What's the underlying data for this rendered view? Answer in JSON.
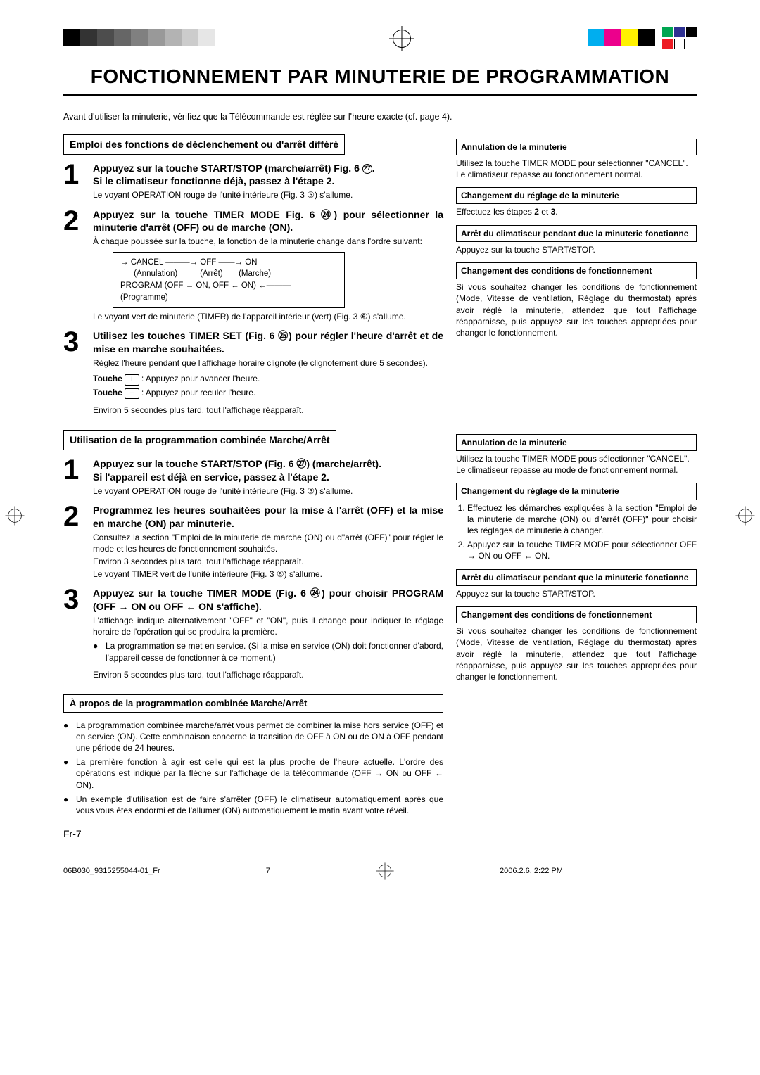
{
  "reg_colors_left": [
    "#000000",
    "#333333",
    "#4d4d4d",
    "#666666",
    "#808080",
    "#999999",
    "#b3b3b3",
    "#cccccc",
    "#e6e6e6"
  ],
  "reg_colors_right_lg": [
    "#00aeef",
    "#ec008c",
    "#fff200",
    "#000000"
  ],
  "reg_colors_right_sm": [
    "#00a651",
    "#ed1c24",
    "#2e3192",
    "#ffffff",
    "#000000"
  ],
  "title": "FONCTIONNEMENT PAR MINUTERIE DE PROGRAMMATION",
  "intro": "Avant d'utiliser la minuterie, vérifiez que la Télécommande est réglée sur l'heure exacte (cf. page 4).",
  "sectionA": {
    "header": "Emploi des fonctions de déclenchement ou d'arrêt différé",
    "step1": {
      "lead_a": "Appuyez sur la touche START/STOP (marche/arrêt) Fig. 6 ",
      "lead_ref": "㉗",
      "lead_b": ".",
      "sub_bold": "Si le climatiseur fonctionne déjà, passez à l'étape 2.",
      "sub": "Le voyant OPERATION rouge de l'unité intérieure (Fig. 3 ⑤) s'allume."
    },
    "step2": {
      "lead": "Appuyez sur la touche TIMER MODE Fig. 6 ㉔) pour sélectionner la minuterie d'arrêt (OFF) ou de marche (ON).",
      "sub": "À chaque poussée sur la touche, la fonction de la minuterie change dans l'ordre suivant:",
      "flow_l1": "→ CANCEL ———→ OFF ——→ ON",
      "flow_l2": "      (Annulation)          (Arrêt)       (Marche)",
      "flow_l3": "PROGRAM (OFF → ON, OFF ← ON) ←———",
      "flow_l4": "(Programme)",
      "after": "Le voyant vert de minuterie (TIMER) de l'appareil intérieur (vert) (Fig. 3 ⑥) s'allume."
    },
    "step3": {
      "lead": "Utilisez les touches TIMER SET (Fig. 6 ㉕) pour régler l'heure d'arrêt et de mise en marche souhaitées.",
      "sub": "Réglez l'heure pendant que l'affichage horaire clignote (le clignotement dure 5 secondes).",
      "key_plus_label": "Touche",
      "key_plus_desc": ": Appuyez pour avancer l'heure.",
      "key_minus_desc": ": Appuyez pour reculer l'heure.",
      "after": "Environ 5 secondes plus tard, tout l'affichage réapparaît."
    },
    "sideA": {
      "t1": "Annulation de la minuterie",
      "b1": "Utilisez la touche TIMER MODE pour sélectionner \"CANCEL\".\nLe climatiseur repasse au fonctionnement normal.",
      "t2": "Changement du réglage de la minuterie",
      "b2": "Effectuez les étapes 2 et 3.",
      "t3": "Arrêt du climatiseur pendant due la minuterie fonctionne",
      "b3": "Appuyez sur la touche START/STOP.",
      "t4": "Changement des conditions de fonctionnement",
      "b4": "Si vous souhaitez changer les conditions de fonctionnement (Mode, Vitesse de ventilation, Réglage du thermostat) après avoir réglé la minuterie, attendez que tout l'affichage réapparaisse, puis appuyez sur les touches appropriées pour changer le fonctionnement."
    }
  },
  "sectionB": {
    "header": "Utilisation de la programmation combinée Marche/Arrêt",
    "step1": {
      "lead": "Appuyez sur la touche START/STOP (Fig. 6 ㉗) (marche/arrêt).",
      "sub_bold": "Si l'appareil est déjà en service, passez à l'étape 2.",
      "sub": "Le voyant OPERATION rouge de l'unité intérieure (Fig. 3 ⑤) s'allume."
    },
    "step2": {
      "lead": "Programmez les heures souhaitées pour la mise à l'arrêt (OFF) et la mise en marche (ON) par minuterie.",
      "sub1": "Consultez la section \"Emploi de la minuterie de marche (ON) ou d\"arrêt (OFF)\" pour régler le mode et les heures de fonctionnement souhaités.",
      "sub2": "Environ 3 secondes plus tard, tout l'affichage réapparaît.",
      "sub3": "Le voyant TIMER vert de l'unité intérieure (Fig. 3 ⑥) s'allume."
    },
    "step3": {
      "lead": "Appuyez sur la touche TIMER MODE (Fig. 6 ㉔) pour choisir PROGRAM (OFF → ON ou OFF ← ON s'affiche).",
      "sub": "L'affichage indique alternativement \"OFF\" et \"ON\", puis il change pour indiquer le réglage horaire de l'opération qui se produira la première.",
      "bul": "La programmation se met en service. (Si la mise en service (ON) doit fonctionner d'abord, l'appareil cesse de fonctionner à ce moment.)",
      "after": "Environ 5 secondes plus tard, tout l'affichage réapparaît."
    },
    "about": {
      "title": "À propos de la programmation combinée Marche/Arrêt",
      "b1": "La programmation combinée marche/arrêt vous permet de combiner la mise hors service (OFF) et en service (ON). Cette combinaison concerne la transition de OFF à ON ou de ON à OFF pendant une période de 24 heures.",
      "b2": "La première fonction à agir est celle qui est la plus proche de l'heure actuelle. L'ordre des opérations est indiqué par la flèche sur l'affichage de la télécommande (OFF → ON ou OFF ← ON).",
      "b3": "Un exemple d'utilisation est de faire s'arrêter (OFF) le climatiseur automatiquement après que vous vous êtes endormi et de l'allumer (ON) automatiquement le matin avant votre réveil."
    },
    "sideB": {
      "t1": "Annulation de la minuterie",
      "b1": "Utilisez la touche TIMER MODE pous sélectionner \"CANCEL\".\nLe climatiseur repasse au mode de fonctionnement normal.",
      "t2": "Changement du réglage de la minuterie",
      "b2_1": "Effectuez les démarches expliquées à la section \"Emploi de la minuterie de marche (ON) ou d\"arrêt (OFF)\" pour choisir les réglages de minuterie à changer.",
      "b2_2": "Appuyez sur la touche TIMER MODE pour sélectionner OFF → ON ou OFF ← ON.",
      "t3": "Arrêt du climatiseur pendant que la minuterie fonctionne",
      "b3": "Appuyez sur la touche START/STOP.",
      "t4": "Changement des conditions de fonctionnement",
      "b4": "Si vous souhaitez changer les conditions de fonctionnement (Mode, Vitesse de ventilation, Réglage du thermostat) après avoir réglé la minuterie, attendez que tout l'affichage réapparaisse, puis appuyez sur les touches appropriées pour changer le fonctionnement."
    }
  },
  "pageNum": "Fr-7",
  "footer": {
    "left": "06B030_9315255044-01_Fr",
    "mid": "7",
    "right": "2006.2.6, 2:22 PM"
  }
}
